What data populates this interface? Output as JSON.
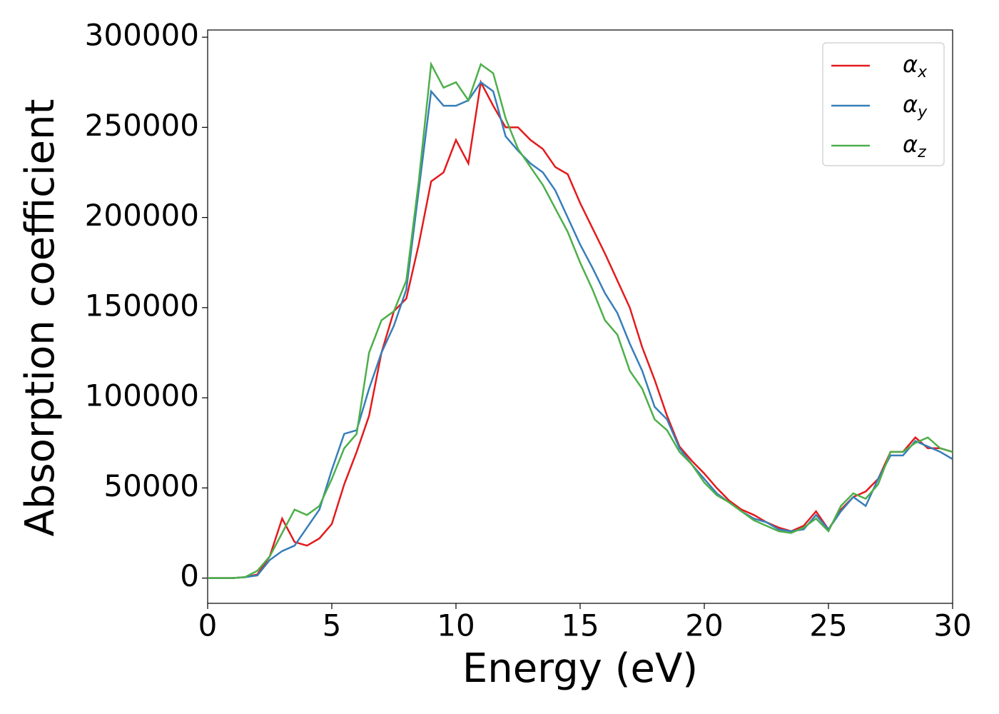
{
  "chart_data": {
    "type": "line",
    "x_label": "Energy (eV)",
    "y_label": "Absorption coefficient",
    "x": [
      0,
      0.5,
      1,
      1.5,
      2,
      2.5,
      3,
      3.5,
      4,
      4.5,
      5,
      5.5,
      6,
      6.5,
      7,
      7.5,
      8,
      8.5,
      9,
      9.5,
      10,
      10.5,
      11,
      11.5,
      12,
      12.5,
      13,
      13.5,
      14,
      14.5,
      15,
      15.5,
      16,
      16.5,
      17,
      17.5,
      18,
      18.5,
      19,
      19.5,
      20,
      20.5,
      21,
      21.5,
      22,
      22.5,
      23,
      23.5,
      24,
      24.5,
      25,
      25.5,
      26,
      26.5,
      27,
      27.5,
      28,
      28.5,
      29,
      29.5,
      30
    ],
    "series": [
      {
        "name": "αx",
        "color": "#e41a1c",
        "values": [
          0,
          0,
          0,
          500,
          2000,
          12000,
          33000,
          20000,
          18000,
          22000,
          30000,
          52000,
          70000,
          90000,
          125000,
          148000,
          155000,
          185000,
          220000,
          225000,
          243000,
          230000,
          275000,
          262000,
          250000,
          250000,
          243000,
          238000,
          228000,
          224000,
          208000,
          194000,
          180000,
          165000,
          150000,
          128000,
          110000,
          90000,
          73000,
          65000,
          58000,
          50000,
          43000,
          38000,
          35000,
          31000,
          28000,
          26000,
          29000,
          37000,
          27000,
          38000,
          45000,
          48000,
          55000,
          70000,
          70000,
          78000,
          72000,
          72000,
          70000
        ]
      },
      {
        "name": "αy",
        "color": "#377eb8",
        "values": [
          0,
          0,
          0,
          500,
          1500,
          10000,
          15000,
          18000,
          28000,
          38000,
          60000,
          80000,
          82000,
          105000,
          125000,
          140000,
          160000,
          215000,
          270000,
          262000,
          262000,
          265000,
          275000,
          270000,
          245000,
          237000,
          230000,
          225000,
          215000,
          200000,
          185000,
          172000,
          158000,
          147000,
          130000,
          115000,
          95000,
          88000,
          72000,
          63000,
          55000,
          47000,
          42000,
          37000,
          33000,
          31000,
          27000,
          26000,
          27000,
          35000,
          27000,
          37000,
          45000,
          40000,
          55000,
          68000,
          68000,
          76000,
          73000,
          70000,
          66000
        ]
      },
      {
        "name": "αz",
        "color": "#4daf4a",
        "values": [
          0,
          0,
          0,
          500,
          4000,
          12000,
          25000,
          38000,
          35000,
          40000,
          55000,
          72000,
          80000,
          125000,
          143000,
          148000,
          165000,
          220000,
          285000,
          272000,
          275000,
          265000,
          285000,
          280000,
          255000,
          238000,
          228000,
          218000,
          205000,
          192000,
          175000,
          160000,
          143000,
          135000,
          115000,
          105000,
          88000,
          82000,
          70000,
          63000,
          53000,
          46000,
          42000,
          37000,
          32000,
          29000,
          26000,
          25000,
          28000,
          33000,
          26000,
          40000,
          47000,
          44000,
          52000,
          70000,
          70000,
          75000,
          78000,
          72000,
          70000
        ]
      }
    ],
    "xlim": [
      0,
      30
    ],
    "xticks": [
      0,
      5,
      10,
      15,
      20,
      25,
      30
    ],
    "ylim": [
      -14000,
      304000
    ],
    "yticks": [
      0,
      50000,
      100000,
      150000,
      200000,
      250000,
      300000
    ],
    "legend": "upper right"
  }
}
